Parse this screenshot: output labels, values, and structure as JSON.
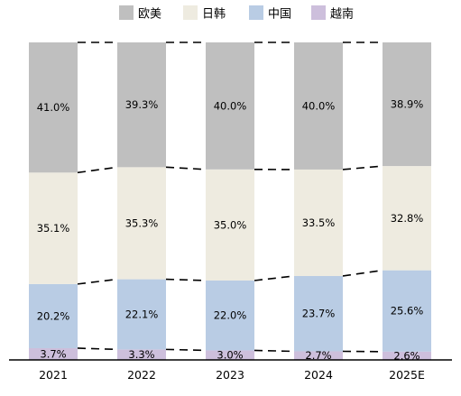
{
  "chart_data": {
    "type": "bar",
    "stacked": true,
    "normalized": true,
    "categories": [
      "2021",
      "2022",
      "2023",
      "2024",
      "2025E"
    ],
    "series": [
      {
        "name": "越南",
        "values": [
          3.7,
          3.3,
          3.0,
          2.7,
          2.6
        ],
        "labels": [
          "3.7%",
          "3.3%",
          "3.0%",
          "2.7%",
          "2.6%"
        ],
        "color": "#cdbfdc"
      },
      {
        "name": "中国",
        "values": [
          20.2,
          22.1,
          22.0,
          23.7,
          25.6
        ],
        "labels": [
          "20.2%",
          "22.1%",
          "22.0%",
          "23.7%",
          "25.6%"
        ],
        "color": "#b9cce4"
      },
      {
        "name": "日韩",
        "values": [
          35.1,
          35.3,
          35.0,
          33.5,
          32.8
        ],
        "labels": [
          "35.1%",
          "35.3%",
          "35.0%",
          "33.5%",
          "32.8%"
        ],
        "color": "#eeebe0"
      },
      {
        "name": "欧美",
        "values": [
          41.0,
          39.3,
          40.0,
          40.0,
          38.9
        ],
        "labels": [
          "41.0%",
          "39.3%",
          "40.0%",
          "40.0%",
          "38.9%"
        ],
        "color": "#bfbfbf"
      }
    ],
    "legend_order": [
      "欧美",
      "日韩",
      "中国",
      "越南"
    ],
    "legend_position": "top",
    "connector_lines": "dashed",
    "grid": false,
    "ylim": [
      0,
      100
    ]
  }
}
